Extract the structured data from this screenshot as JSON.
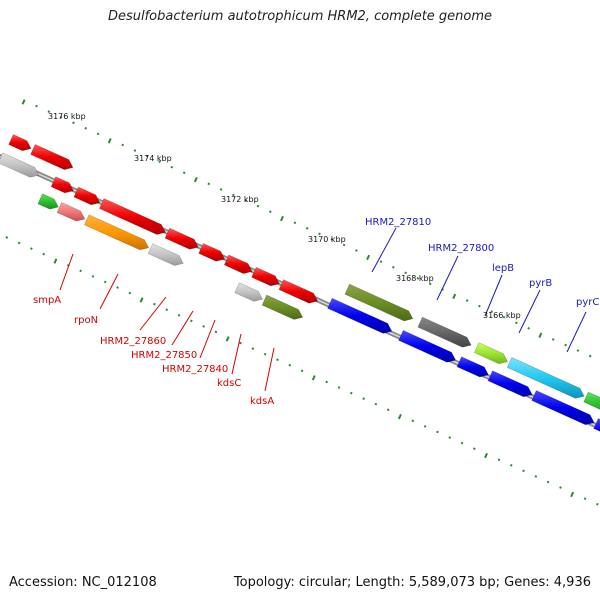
{
  "title": "Desulfobacterium autotrophicum HRM2, complete genome",
  "footer": {
    "accession": "Accession: NC_012108",
    "topology": "Topology: circular; Length: 5,589,073 bp; Genes: 4,936"
  },
  "colors": {
    "backbone": "#777777",
    "tick": "#2a8a2a",
    "label_red": "#d40000",
    "label_blue": "#1a1ab8"
  },
  "ticks": {
    "kbp_labels": [
      "3176 kbp",
      "3174 kbp",
      "3172 kbp",
      "3170 kbp",
      "3168 kbp",
      "3166 kbp"
    ]
  },
  "genes": [
    {
      "name": "smpA",
      "color": "#d40000",
      "strand": "lower"
    },
    {
      "name": "rpoN",
      "color": "#d40000",
      "strand": "lower"
    },
    {
      "name": "HRM2_27860",
      "color": "#d40000",
      "strand": "lower"
    },
    {
      "name": "HRM2_27850",
      "color": "#d40000",
      "strand": "lower"
    },
    {
      "name": "HRM2_27840",
      "color": "#d40000",
      "strand": "lower"
    },
    {
      "name": "kdsC",
      "color": "#d40000",
      "strand": "lower"
    },
    {
      "name": "kdsA",
      "color": "#d40000",
      "strand": "lower"
    },
    {
      "name": "HRM2_27810",
      "color": "#1a1ab8",
      "strand": "upper"
    },
    {
      "name": "HRM2_27800",
      "color": "#1a1ab8",
      "strand": "upper"
    },
    {
      "name": "lepB",
      "color": "#1a1ab8",
      "strand": "upper"
    },
    {
      "name": "pyrB",
      "color": "#1a1ab8",
      "strand": "upper"
    },
    {
      "name": "pyrC",
      "color": "#1a1ab8",
      "strand": "upper"
    }
  ]
}
